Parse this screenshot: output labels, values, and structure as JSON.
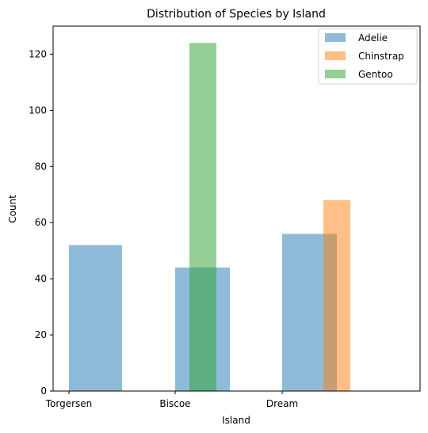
{
  "chart_data": {
    "type": "bar",
    "title": "Distribution of Species by Island",
    "xlabel": "Island",
    "ylabel": "Count",
    "categories": [
      "Torgersen",
      "Biscoe",
      "Dream"
    ],
    "ylim": [
      0,
      130
    ],
    "yticks": [
      "0",
      "20",
      "40",
      "60",
      "80",
      "100",
      "120"
    ],
    "series": [
      {
        "name": "Adelie",
        "color": "#1f77b4",
        "values": [
          52,
          44,
          56
        ]
      },
      {
        "name": "Chinstrap",
        "color": "#ff7f0e",
        "values": [
          0,
          0,
          68
        ]
      },
      {
        "name": "Gentoo",
        "color": "#2ca02c",
        "values": [
          0,
          124,
          0
        ]
      }
    ],
    "legend_position": "top-right",
    "grid": false
  }
}
